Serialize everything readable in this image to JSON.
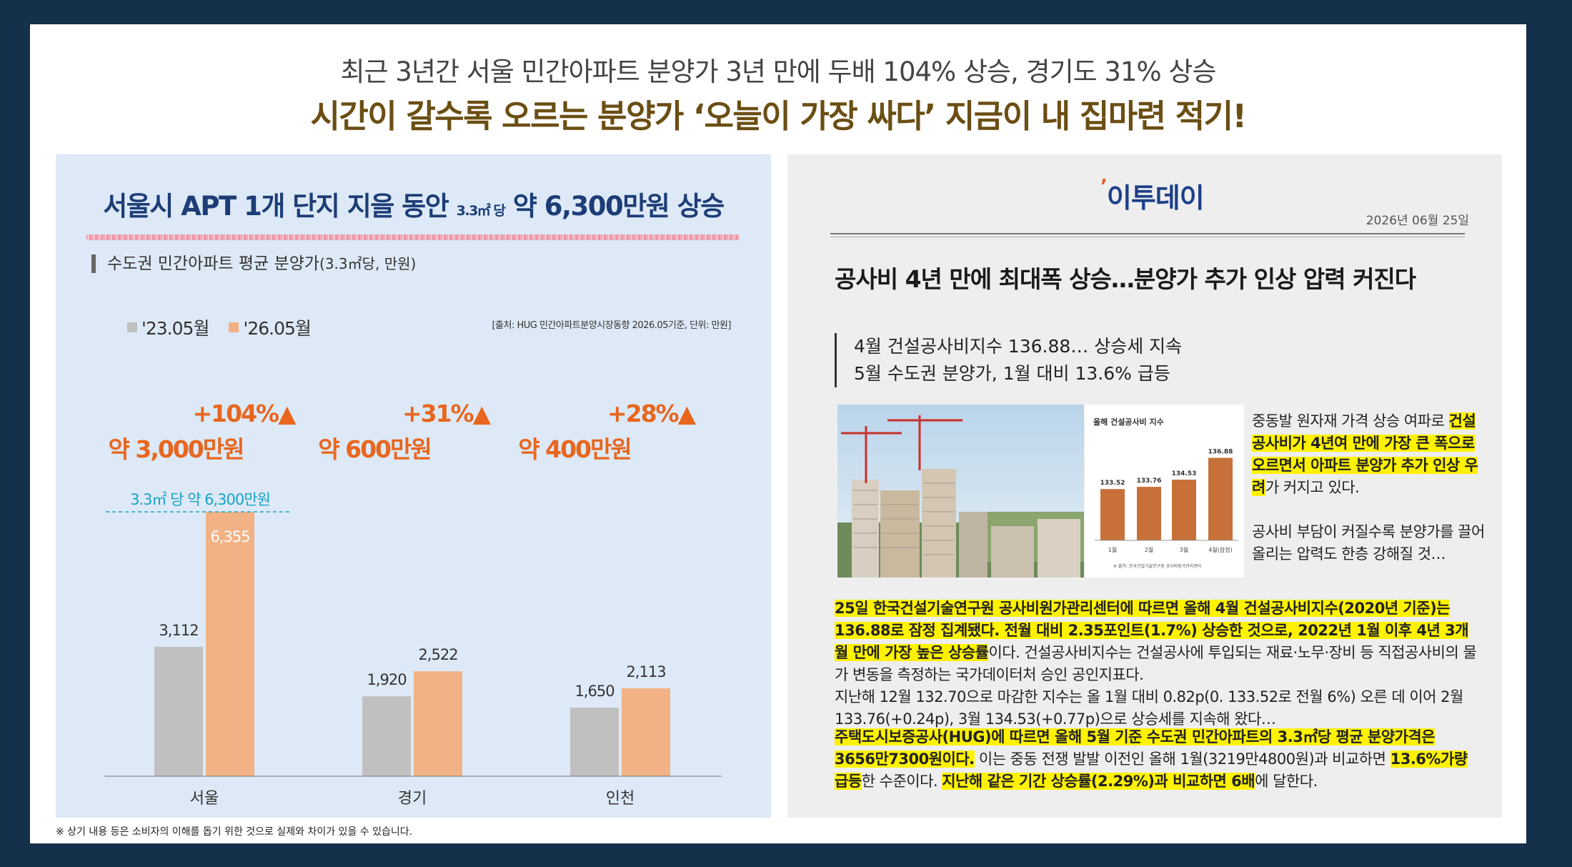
{
  "header": {
    "subtitle": "최근 3년간 서울 민간아파트 분양가 3년 만에 두배 104% 상승, 경기도 31% 상승",
    "title": "시간이 갈수록 오르는 분양가 ‘오늘이 가장 싸다’ 지금이 내 집마련 적기!"
  },
  "left": {
    "title_a": "서울시 APT 1개 단지 지을 동안",
    "title_small": "3.3㎡ 당",
    "title_b": "약 6,300만원 상승",
    "subtitle": "수도권 민간아파트 평균 분양가",
    "subtitle_unit": "(3.3㎡당, 만원)",
    "source": "[출처: HUG 민간아파트분양시장동향 2026.05기준, 단위: 만원]"
  },
  "chart_data": {
    "type": "bar",
    "categories": [
      "서울",
      "경기",
      "인천"
    ],
    "series": [
      {
        "name": "'23.05월",
        "values": [
          3112,
          1920,
          1650
        ],
        "color": "#c0c0c0"
      },
      {
        "name": "'26.05월",
        "values": [
          6355,
          2522,
          2113
        ],
        "color": "#f2b285"
      }
    ],
    "value_labels": [
      [
        "3,112",
        "6,355"
      ],
      [
        "1,920",
        "2,522"
      ],
      [
        "1,650",
        "2,113"
      ]
    ],
    "ylim": [
      0,
      6700
    ],
    "annotations": [
      {
        "pct": "+104%▲",
        "amount": "약 3,000만원"
      },
      {
        "pct": "+31%▲",
        "amount": "약 600만원"
      },
      {
        "pct": "+28%▲",
        "amount": "약 400만원"
      }
    ],
    "reference_label": "3.3㎡ 당 약 6,300만원",
    "colors": {
      "annot": "#e8661e",
      "reference": "#1aa3c8"
    }
  },
  "article": {
    "logo": "이투데이",
    "date": "2026년 06월 25일",
    "headline": "공사비 4년 만에 최대폭 상승…분양가 추가 인상 압력 커진다",
    "subhead1": "4월 건설공사비지수 136.88… 상승세 지속",
    "subhead2": "5월 수도권 분양가, 1월 대비 13.6% 급등",
    "mini_chart": {
      "title": "올해 건설공사비 지수",
      "categories": [
        "1월",
        "2월",
        "3월",
        "4월(잠정)"
      ],
      "values": [
        133.52,
        133.76,
        134.53,
        136.88
      ],
      "labels": [
        "133.52",
        "133.76",
        "134.53",
        "136.88"
      ],
      "source": "※ 출처: 한국건설기술연구원 공사비원가관리센터"
    },
    "side_p1_a": "중동발 원자재 가격 상승 여파로 ",
    "side_p1_hl": "건설공사비가 4년여 만에 가장 큰 폭으로 오르면서 아파트 분양가 추가 인상 우려",
    "side_p1_b": "가 커지고 있다.",
    "side_p2": "공사비 부담이 커질수록 분양가를 끌어올리는 압력도 한층 강해질 것…",
    "p1_hl": "25일 한국건설기술연구원 공사비원가관리센터에 따르면 올해 4월 건설공사비지수(2020년 기준)는 136.88로 잠정 집계됐다. 전월 대비 2.35포인트(1.7%) 상승한 것으로, 2022년 1월 이후 4년 3개월 만에 가장 높은 상승률",
    "p1_rest": "이다. 건설공사비지수는 건설공사에 투입되는 재료·노무·장비 등 직접공사비의 물가 변동을 측정하는 국가데이터처 승인 공인지표다.",
    "p1_last": "지난해 12월 132.70으로 마감한 지수는 올 1월 대비 0.82p(0. 133.52로 전월 6%) 오른 데 이어 2월 133.76(+0.24p), 3월 134.53(+0.77p)으로 상승세를 지속해 왔다…",
    "p2_hl1": "주택도시보증공사(HUG)에 따르면 올해 5월 기준 수도권 민간아파트의 3.3㎡당 평균 분양가격은 3656만7300원이다.",
    "p2_a": " 이는 중동 전쟁 발발 이전인 올해 1월(3219만4800원)과 비교하면 ",
    "p2_hl2": "13.6%가량 급등",
    "p2_b": "한 수준이다. ",
    "p2_hl3": "지난해 같은 기간 상승률(2.29%)과 비교하면 6배",
    "p2_c": "에 달한다."
  },
  "footnote": "※ 상기  내용 등은 소비자의 이해를 돕기 위한 것으로 실제와 차이가 있을 수 있습니다."
}
